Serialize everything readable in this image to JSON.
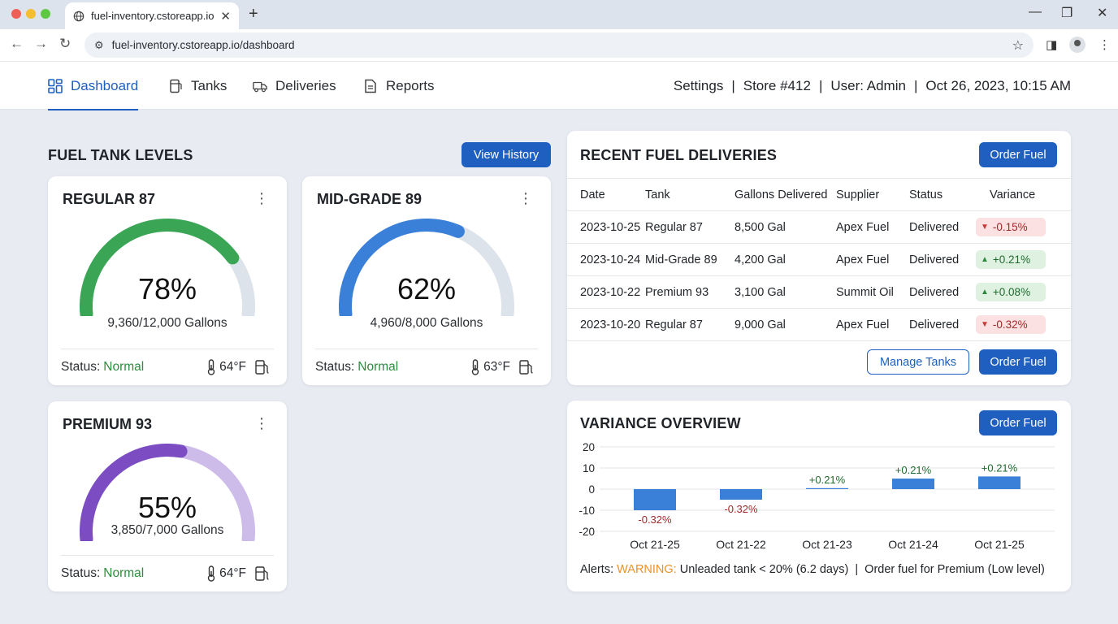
{
  "browser": {
    "tab_title": "fuel-inventory.cstoreapp.io",
    "url": "fuel-inventory.cstoreapp.io/dashboard"
  },
  "nav": {
    "items": [
      {
        "label": "Dashboard",
        "icon": "grid-icon",
        "active": true
      },
      {
        "label": "Tanks",
        "icon": "tank-icon",
        "active": false
      },
      {
        "label": "Deliveries",
        "icon": "truck-icon",
        "active": false
      },
      {
        "label": "Reports",
        "icon": "document-icon",
        "active": false
      }
    ],
    "settings": "Settings",
    "store": "Store #412",
    "user": "User: Admin",
    "datetime": "Oct 26, 2023, 10:15 AM",
    "separator": "|"
  },
  "tank_levels": {
    "title": "FUEL TANK LEVELS",
    "history_button": "View History",
    "status_label": "Status:",
    "tanks": [
      {
        "name": "REGULAR 87",
        "percent_label": "78%",
        "percent": 78,
        "gallons": "9,360/12,000 Gallons",
        "status": "Normal",
        "temp": "64°F",
        "fill_color": "#3aa655",
        "track_color": "#dde3ea"
      },
      {
        "name": "MID-GRADE 89",
        "percent_label": "62%",
        "percent": 62,
        "gallons": "4,960/8,000 Gallons",
        "status": "Normal",
        "temp": "63°F",
        "fill_color": "#3a7fd8",
        "track_color": "#dde3ea"
      },
      {
        "name": "PREMIUM 93",
        "percent_label": "55%",
        "percent": 55,
        "gallons": "3,850/7,000 Gallons",
        "status": "Normal",
        "temp": "64°F",
        "fill_color": "#7b4cc2",
        "track_color": "#cdbbe9"
      }
    ]
  },
  "deliveries": {
    "title": "RECENT FUEL DELIVERIES",
    "order_button": "Order Fuel",
    "manage_button": "Manage Tanks",
    "columns": [
      "Date",
      "Tank",
      "Gallons Delivered",
      "Supplier",
      "Status",
      "Variance"
    ],
    "rows": [
      {
        "date": "2023-10-25",
        "tank": "Regular 87",
        "gallons": "8,500 Gal",
        "supplier": "Apex Fuel",
        "status": "Delivered",
        "variance": "-0.15%",
        "dir": "down"
      },
      {
        "date": "2023-10-24",
        "tank": "Mid-Grade 89",
        "gallons": "4,200 Gal",
        "supplier": "Apex Fuel",
        "status": "Delivered",
        "variance": "+0.21%",
        "dir": "up"
      },
      {
        "date": "2023-10-22",
        "tank": "Premium 93",
        "gallons": "3,100 Gal",
        "supplier": "Summit Oil",
        "status": "Delivered",
        "variance": "+0.08%",
        "dir": "up"
      },
      {
        "date": "2023-10-20",
        "tank": "Regular 87",
        "gallons": "9,000 Gal",
        "supplier": "Apex Fuel",
        "status": "Delivered",
        "variance": "-0.32%",
        "dir": "down"
      }
    ]
  },
  "variance": {
    "title": "VARIANCE OVERVIEW",
    "order_button": "Order Fuel",
    "alerts_label": "Alerts:",
    "alerts_warning": "WARNING:",
    "alerts_text": "Unleaded tank < 20% (6.2 days)  |  Order fuel for Premium (Low level)"
  },
  "chart_data": {
    "type": "bar",
    "categories": [
      "Oct 21-25",
      "Oct 21-22",
      "Oct 21-23",
      "Oct 21-24",
      "Oct 21-25"
    ],
    "values": [
      -10,
      -5,
      0,
      5,
      6
    ],
    "data_labels": [
      "-0.32%",
      "-0.32%",
      "+0.21%",
      "+0.21%",
      "+0.21%"
    ],
    "yticks": [
      "20",
      "10",
      "0",
      "-10",
      "-20"
    ],
    "ylim": [
      -20,
      20
    ],
    "bar_color": "#3a7fd8",
    "label_colors": {
      "up": "#1f6b2e",
      "down": "#a12b2b"
    },
    "grid": true
  }
}
